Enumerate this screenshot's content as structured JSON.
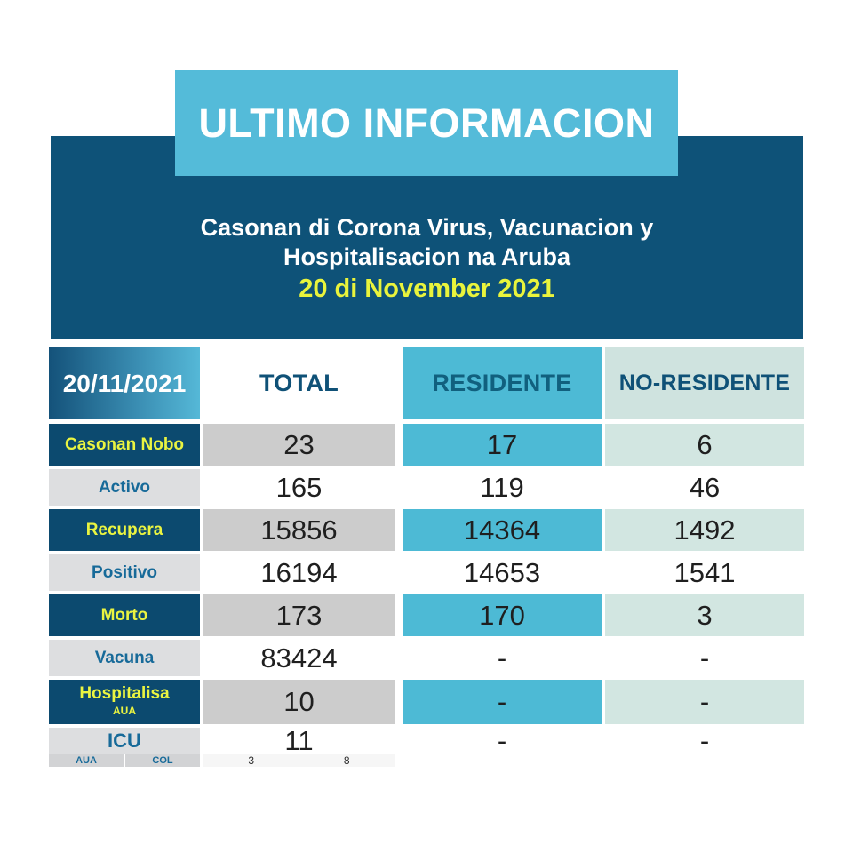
{
  "header": {
    "title": "ULTIMO INFORMACION",
    "subtitle_line1": "Casonan di Corona Virus, Vacunacion y",
    "subtitle_line2": "Hospitalisacion na Aruba",
    "date_line": "20 di November 2021"
  },
  "table": {
    "date_header": "20/11/2021",
    "columns": {
      "total": "TOTAL",
      "residente": "RESIDENTE",
      "no_residente": "NO-RESIDENTE"
    },
    "rows": [
      {
        "label": "Casonan Nobo",
        "total": "23",
        "residente": "17",
        "no_residente": "6"
      },
      {
        "label": "Activo",
        "total": "165",
        "residente": "119",
        "no_residente": "46"
      },
      {
        "label": "Recupera",
        "total": "15856",
        "residente": "14364",
        "no_residente": "1492"
      },
      {
        "label": "Positivo",
        "total": "16194",
        "residente": "14653",
        "no_residente": "1541"
      },
      {
        "label": "Morto",
        "total": "173",
        "residente": "170",
        "no_residente": "3"
      },
      {
        "label": "Vacuna",
        "total": "83424",
        "residente": "-",
        "no_residente": "-"
      },
      {
        "label": "Hospitalisa",
        "sublabel": "AUA",
        "total": "10",
        "residente": "-",
        "no_residente": "-"
      },
      {
        "label": "ICU",
        "total": "11",
        "residente": "-",
        "no_residente": "-"
      }
    ],
    "icu_breakdown": {
      "labels": [
        "AUA",
        "COL"
      ],
      "values": [
        "3",
        "8"
      ]
    }
  },
  "colors": {
    "banner_dark_blue": "#0e5278",
    "title_box_blue": "#54bbd9",
    "accent_yellow": "#e9f43c",
    "row_label_dark": "#0c4a6f",
    "row_label_gray": "#dddee0",
    "cell_gray": "#cccccc",
    "cell_cyan": "#4dbad5",
    "cell_pale": "#d2e6e1",
    "header_text_blue": "#0f5177",
    "label_text_blue": "#176a99"
  },
  "chart_data": {
    "type": "table",
    "title": "ULTIMO INFORMACION",
    "subtitle": "Casonan di Corona Virus, Vacunacion y Hospitalisacion na Aruba",
    "date": "20 di November 2021",
    "columns": [
      "20/11/2021",
      "TOTAL",
      "RESIDENTE",
      "NO-RESIDENTE"
    ],
    "rows": [
      [
        "Casonan Nobo",
        23,
        17,
        6
      ],
      [
        "Activo",
        165,
        119,
        46
      ],
      [
        "Recupera",
        15856,
        14364,
        1492
      ],
      [
        "Positivo",
        16194,
        14653,
        1541
      ],
      [
        "Morto",
        173,
        170,
        3
      ],
      [
        "Vacuna",
        83424,
        "-",
        "-"
      ],
      [
        "Hospitalisa AUA",
        10,
        "-",
        "-"
      ],
      [
        "ICU",
        11,
        "-",
        "-"
      ],
      [
        "ICU AUA",
        3,
        "-",
        "-"
      ],
      [
        "ICU COL",
        8,
        "-",
        "-"
      ]
    ]
  }
}
